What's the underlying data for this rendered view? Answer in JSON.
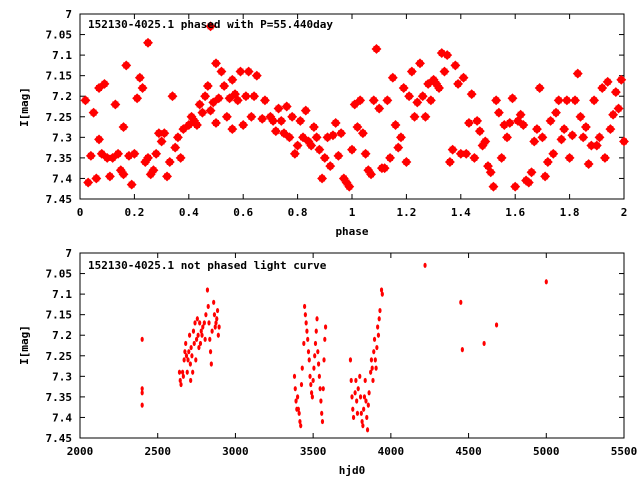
{
  "chart_data": [
    {
      "type": "scatter",
      "title": "152130-4025.1 phased with P=55.440day",
      "xlabel": "phase",
      "ylabel": "I[mag]",
      "xlim": [
        0,
        2
      ],
      "ylim": [
        7.45,
        7.0
      ],
      "y_inverted": true,
      "grid": false,
      "marker_color": "#ff0000",
      "xticks": [
        "0",
        "0.2",
        "0.4",
        "0.6",
        "0.8",
        "1",
        "1.2",
        "1.4",
        "1.6",
        "1.8",
        "2"
      ],
      "xtick_values": [
        0,
        0.2,
        0.4,
        0.6,
        0.8,
        1.0,
        1.2,
        1.4,
        1.6,
        1.8,
        2.0
      ],
      "yticks": [
        "7",
        "7.05",
        "7.1",
        "7.15",
        "7.2",
        "7.25",
        "7.3",
        "7.35",
        "7.4",
        "7.45"
      ],
      "ytick_values": [
        7.0,
        7.05,
        7.1,
        7.15,
        7.2,
        7.25,
        7.3,
        7.35,
        7.4,
        7.45
      ],
      "points": [
        [
          0.02,
          7.21
        ],
        [
          0.03,
          7.41
        ],
        [
          0.04,
          7.345
        ],
        [
          0.05,
          7.24
        ],
        [
          0.06,
          7.4
        ],
        [
          0.07,
          7.18
        ],
        [
          0.07,
          7.305
        ],
        [
          0.08,
          7.34
        ],
        [
          0.09,
          7.17
        ],
        [
          0.1,
          7.35
        ],
        [
          0.11,
          7.395
        ],
        [
          0.12,
          7.35
        ],
        [
          0.13,
          7.22
        ],
        [
          0.14,
          7.34
        ],
        [
          0.15,
          7.38
        ],
        [
          0.16,
          7.39
        ],
        [
          0.16,
          7.275
        ],
        [
          0.17,
          7.125
        ],
        [
          0.18,
          7.345
        ],
        [
          0.19,
          7.415
        ],
        [
          0.2,
          7.34
        ],
        [
          0.21,
          7.205
        ],
        [
          0.22,
          7.155
        ],
        [
          0.23,
          7.18
        ],
        [
          0.24,
          7.36
        ],
        [
          0.25,
          7.07
        ],
        [
          0.25,
          7.35
        ],
        [
          0.26,
          7.39
        ],
        [
          0.27,
          7.38
        ],
        [
          0.28,
          7.34
        ],
        [
          0.29,
          7.29
        ],
        [
          0.3,
          7.31
        ],
        [
          0.31,
          7.29
        ],
        [
          0.32,
          7.395
        ],
        [
          0.33,
          7.36
        ],
        [
          0.34,
          7.2
        ],
        [
          0.35,
          7.325
        ],
        [
          0.36,
          7.3
        ],
        [
          0.37,
          7.35
        ],
        [
          0.38,
          7.28
        ],
        [
          0.4,
          7.27
        ],
        [
          0.41,
          7.25
        ],
        [
          0.42,
          7.26
        ],
        [
          0.43,
          7.27
        ],
        [
          0.44,
          7.22
        ],
        [
          0.45,
          7.24
        ],
        [
          0.46,
          7.2
        ],
        [
          0.47,
          7.175
        ],
        [
          0.48,
          7.03
        ],
        [
          0.48,
          7.235
        ],
        [
          0.49,
          7.215
        ],
        [
          0.5,
          7.12
        ],
        [
          0.5,
          7.265
        ],
        [
          0.51,
          7.205
        ],
        [
          0.52,
          7.14
        ],
        [
          0.53,
          7.175
        ],
        [
          0.54,
          7.25
        ],
        [
          0.55,
          7.205
        ],
        [
          0.56,
          7.28
        ],
        [
          0.56,
          7.16
        ],
        [
          0.57,
          7.195
        ],
        [
          0.58,
          7.21
        ],
        [
          0.59,
          7.14
        ],
        [
          0.6,
          7.27
        ],
        [
          0.61,
          7.2
        ],
        [
          0.62,
          7.14
        ],
        [
          0.63,
          7.25
        ],
        [
          0.64,
          7.2
        ],
        [
          0.65,
          7.15
        ],
        [
          0.67,
          7.255
        ],
        [
          0.68,
          7.21
        ],
        [
          0.7,
          7.25
        ],
        [
          0.71,
          7.26
        ],
        [
          0.72,
          7.285
        ],
        [
          0.73,
          7.23
        ],
        [
          0.74,
          7.26
        ],
        [
          0.75,
          7.29
        ],
        [
          0.76,
          7.225
        ],
        [
          0.77,
          7.3
        ],
        [
          0.78,
          7.25
        ],
        [
          0.79,
          7.34
        ],
        [
          0.8,
          7.32
        ],
        [
          0.81,
          7.26
        ],
        [
          0.82,
          7.3
        ],
        [
          0.83,
          7.235
        ],
        [
          0.84,
          7.31
        ],
        [
          0.85,
          7.32
        ],
        [
          0.86,
          7.275
        ],
        [
          0.87,
          7.3
        ],
        [
          0.88,
          7.33
        ],
        [
          0.89,
          7.4
        ],
        [
          0.9,
          7.35
        ],
        [
          0.91,
          7.3
        ],
        [
          0.92,
          7.37
        ],
        [
          0.93,
          7.295
        ],
        [
          0.94,
          7.265
        ],
        [
          0.95,
          7.345
        ],
        [
          0.96,
          7.29
        ],
        [
          0.97,
          7.4
        ],
        [
          0.98,
          7.41
        ],
        [
          0.99,
          7.42
        ],
        [
          1.0,
          7.33
        ],
        [
          1.01,
          7.22
        ],
        [
          1.02,
          7.275
        ],
        [
          1.03,
          7.21
        ],
        [
          1.04,
          7.29
        ],
        [
          1.05,
          7.34
        ],
        [
          1.06,
          7.38
        ],
        [
          1.07,
          7.39
        ],
        [
          1.08,
          7.21
        ],
        [
          1.09,
          7.085
        ],
        [
          1.1,
          7.23
        ],
        [
          1.11,
          7.375
        ],
        [
          1.12,
          7.375
        ],
        [
          1.13,
          7.21
        ],
        [
          1.14,
          7.35
        ],
        [
          1.15,
          7.155
        ],
        [
          1.16,
          7.27
        ],
        [
          1.17,
          7.325
        ],
        [
          1.18,
          7.3
        ],
        [
          1.19,
          7.18
        ],
        [
          1.2,
          7.36
        ],
        [
          1.21,
          7.2
        ],
        [
          1.22,
          7.14
        ],
        [
          1.23,
          7.25
        ],
        [
          1.24,
          7.215
        ],
        [
          1.25,
          7.12
        ],
        [
          1.26,
          7.2
        ],
        [
          1.27,
          7.25
        ],
        [
          1.28,
          7.17
        ],
        [
          1.29,
          7.21
        ],
        [
          1.3,
          7.16
        ],
        [
          1.31,
          7.17
        ],
        [
          1.32,
          7.18
        ],
        [
          1.33,
          7.095
        ],
        [
          1.34,
          7.14
        ],
        [
          1.35,
          7.1
        ],
        [
          1.36,
          7.36
        ],
        [
          1.37,
          7.33
        ],
        [
          1.38,
          7.125
        ],
        [
          1.39,
          7.17
        ],
        [
          1.4,
          7.34
        ],
        [
          1.41,
          7.155
        ],
        [
          1.42,
          7.34
        ],
        [
          1.43,
          7.265
        ],
        [
          1.44,
          7.195
        ],
        [
          1.45,
          7.35
        ],
        [
          1.46,
          7.26
        ],
        [
          1.47,
          7.285
        ],
        [
          1.48,
          7.32
        ],
        [
          1.49,
          7.31
        ],
        [
          1.5,
          7.37
        ],
        [
          1.51,
          7.385
        ],
        [
          1.52,
          7.42
        ],
        [
          1.53,
          7.21
        ],
        [
          1.54,
          7.24
        ],
        [
          1.55,
          7.35
        ],
        [
          1.56,
          7.27
        ],
        [
          1.57,
          7.3
        ],
        [
          1.58,
          7.265
        ],
        [
          1.59,
          7.205
        ],
        [
          1.6,
          7.42
        ],
        [
          1.61,
          7.26
        ],
        [
          1.62,
          7.245
        ],
        [
          1.63,
          7.27
        ],
        [
          1.64,
          7.405
        ],
        [
          1.65,
          7.41
        ],
        [
          1.66,
          7.385
        ],
        [
          1.67,
          7.31
        ],
        [
          1.68,
          7.28
        ],
        [
          1.69,
          7.18
        ],
        [
          1.7,
          7.3
        ],
        [
          1.71,
          7.395
        ],
        [
          1.72,
          7.36
        ],
        [
          1.73,
          7.26
        ],
        [
          1.74,
          7.34
        ],
        [
          1.75,
          7.24
        ],
        [
          1.76,
          7.21
        ],
        [
          1.77,
          7.305
        ],
        [
          1.78,
          7.28
        ],
        [
          1.79,
          7.21
        ],
        [
          1.8,
          7.35
        ],
        [
          1.81,
          7.295
        ],
        [
          1.82,
          7.21
        ],
        [
          1.83,
          7.145
        ],
        [
          1.84,
          7.25
        ],
        [
          1.85,
          7.3
        ],
        [
          1.86,
          7.275
        ],
        [
          1.87,
          7.365
        ],
        [
          1.88,
          7.32
        ],
        [
          1.89,
          7.21
        ],
        [
          1.9,
          7.32
        ],
        [
          1.91,
          7.3
        ],
        [
          1.92,
          7.18
        ],
        [
          1.93,
          7.35
        ],
        [
          1.94,
          7.165
        ],
        [
          1.95,
          7.28
        ],
        [
          1.96,
          7.245
        ],
        [
          1.97,
          7.19
        ],
        [
          1.98,
          7.23
        ],
        [
          1.99,
          7.16
        ],
        [
          2.0,
          7.31
        ]
      ]
    },
    {
      "type": "scatter",
      "title": "152130-4025.1 not phased light curve",
      "xlabel": "hjd0",
      "ylabel": "I[mag]",
      "xlim": [
        2000,
        5500
      ],
      "ylim": [
        7.45,
        7.0
      ],
      "y_inverted": true,
      "grid": false,
      "marker_color": "#ff0000",
      "xticks": [
        "2000",
        "2500",
        "3000",
        "3500",
        "4000",
        "4500",
        "5000",
        "5500"
      ],
      "xtick_values": [
        2000,
        2500,
        3000,
        3500,
        4000,
        4500,
        5000,
        5500
      ],
      "yticks": [
        "7",
        "7.05",
        "7.1",
        "7.15",
        "7.2",
        "7.25",
        "7.3",
        "7.35",
        "7.4",
        "7.45"
      ],
      "ytick_values": [
        7.0,
        7.05,
        7.1,
        7.15,
        7.2,
        7.25,
        7.3,
        7.35,
        7.4,
        7.45
      ],
      "points": [
        [
          2400,
          7.21
        ],
        [
          2400,
          7.33
        ],
        [
          2400,
          7.34
        ],
        [
          2400,
          7.37
        ],
        [
          2640,
          7.29
        ],
        [
          2645,
          7.31
        ],
        [
          2650,
          7.32
        ],
        [
          2660,
          7.29
        ],
        [
          2665,
          7.3
        ],
        [
          2670,
          7.26
        ],
        [
          2675,
          7.24
        ],
        [
          2680,
          7.22
        ],
        [
          2685,
          7.25
        ],
        [
          2690,
          7.29
        ],
        [
          2695,
          7.26
        ],
        [
          2700,
          7.24
        ],
        [
          2705,
          7.2
        ],
        [
          2710,
          7.27
        ],
        [
          2712,
          7.31
        ],
        [
          2715,
          7.23
        ],
        [
          2720,
          7.25
        ],
        [
          2725,
          7.29
        ],
        [
          2730,
          7.19
        ],
        [
          2735,
          7.22
        ],
        [
          2740,
          7.17
        ],
        [
          2745,
          7.26
        ],
        [
          2750,
          7.21
        ],
        [
          2755,
          7.16
        ],
        [
          2760,
          7.2
        ],
        [
          2765,
          7.23
        ],
        [
          2770,
          7.17
        ],
        [
          2775,
          7.22
        ],
        [
          2780,
          7.19
        ],
        [
          2785,
          7.2
        ],
        [
          2790,
          7.18
        ],
        [
          2800,
          7.17
        ],
        [
          2805,
          7.21
        ],
        [
          2810,
          7.15
        ],
        [
          2820,
          7.09
        ],
        [
          2825,
          7.13
        ],
        [
          2830,
          7.17
        ],
        [
          2835,
          7.21
        ],
        [
          2840,
          7.24
        ],
        [
          2845,
          7.27
        ],
        [
          2850,
          7.19
        ],
        [
          2860,
          7.12
        ],
        [
          2865,
          7.15
        ],
        [
          2870,
          7.18
        ],
        [
          2875,
          7.17
        ],
        [
          2880,
          7.16
        ],
        [
          2885,
          7.14
        ],
        [
          2890,
          7.2
        ],
        [
          2895,
          7.18
        ],
        [
          3380,
          7.3
        ],
        [
          3385,
          7.33
        ],
        [
          3390,
          7.36
        ],
        [
          3395,
          7.38
        ],
        [
          3400,
          7.35
        ],
        [
          3405,
          7.38
        ],
        [
          3410,
          7.39
        ],
        [
          3415,
          7.41
        ],
        [
          3420,
          7.42
        ],
        [
          3425,
          7.32
        ],
        [
          3430,
          7.28
        ],
        [
          3440,
          7.22
        ],
        [
          3445,
          7.13
        ],
        [
          3450,
          7.15
        ],
        [
          3455,
          7.17
        ],
        [
          3460,
          7.19
        ],
        [
          3465,
          7.21
        ],
        [
          3470,
          7.24
        ],
        [
          3475,
          7.26
        ],
        [
          3480,
          7.3
        ],
        [
          3485,
          7.32
        ],
        [
          3490,
          7.34
        ],
        [
          3495,
          7.35
        ],
        [
          3500,
          7.31
        ],
        [
          3505,
          7.28
        ],
        [
          3510,
          7.25
        ],
        [
          3515,
          7.22
        ],
        [
          3520,
          7.19
        ],
        [
          3525,
          7.16
        ],
        [
          3530,
          7.24
        ],
        [
          3535,
          7.27
        ],
        [
          3540,
          7.3
        ],
        [
          3545,
          7.33
        ],
        [
          3550,
          7.36
        ],
        [
          3555,
          7.39
        ],
        [
          3560,
          7.41
        ],
        [
          3565,
          7.33
        ],
        [
          3570,
          7.26
        ],
        [
          3575,
          7.21
        ],
        [
          3580,
          7.18
        ],
        [
          3740,
          7.26
        ],
        [
          3745,
          7.31
        ],
        [
          3750,
          7.35
        ],
        [
          3755,
          7.38
        ],
        [
          3760,
          7.4
        ],
        [
          3770,
          7.34
        ],
        [
          3775,
          7.31
        ],
        [
          3780,
          7.36
        ],
        [
          3785,
          7.39
        ],
        [
          3790,
          7.33
        ],
        [
          3800,
          7.3
        ],
        [
          3805,
          7.35
        ],
        [
          3810,
          7.39
        ],
        [
          3815,
          7.41
        ],
        [
          3820,
          7.42
        ],
        [
          3825,
          7.38
        ],
        [
          3830,
          7.35
        ],
        [
          3835,
          7.31
        ],
        [
          3840,
          7.36
        ],
        [
          3845,
          7.4
        ],
        [
          3850,
          7.43
        ],
        [
          3855,
          7.37
        ],
        [
          3860,
          7.34
        ],
        [
          3870,
          7.29
        ],
        [
          3875,
          7.26
        ],
        [
          3880,
          7.28
        ],
        [
          3885,
          7.31
        ],
        [
          3890,
          7.24
        ],
        [
          3895,
          7.21
        ],
        [
          3900,
          7.26
        ],
        [
          3905,
          7.28
        ],
        [
          3910,
          7.23
        ],
        [
          3915,
          7.18
        ],
        [
          3920,
          7.2
        ],
        [
          3925,
          7.16
        ],
        [
          3930,
          7.14
        ],
        [
          3940,
          7.09
        ],
        [
          3945,
          7.1
        ],
        [
          4220,
          7.03
        ],
        [
          4450,
          7.12
        ],
        [
          4460,
          7.235
        ],
        [
          4600,
          7.22
        ],
        [
          4680,
          7.175
        ],
        [
          5000,
          7.07
        ]
      ]
    }
  ]
}
